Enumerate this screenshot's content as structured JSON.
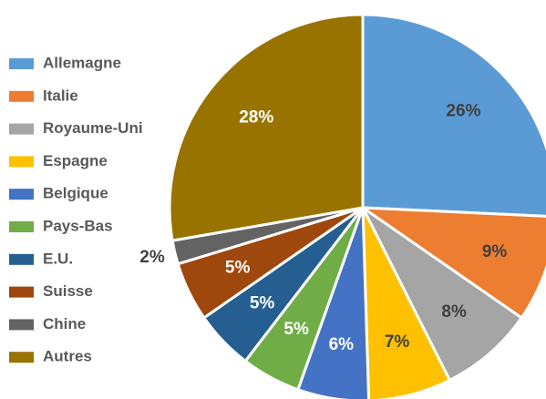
{
  "chart_data": {
    "type": "pie",
    "categories": [
      "Allemagne",
      "Italie",
      "Royaume-Uni",
      "Espagne",
      "Belgique",
      "Pays-Bas",
      "E.U.",
      "Suisse",
      "Chine",
      "Autres"
    ],
    "values": [
      26,
      9,
      8,
      7,
      6,
      5,
      5,
      5,
      2,
      28
    ],
    "value_labels": [
      "26%",
      "9%",
      "8%",
      "7%",
      "6%",
      "5%",
      "5%",
      "5%",
      "2%",
      "28%"
    ],
    "colors": [
      "#5b9bd5",
      "#ed7d31",
      "#a5a5a5",
      "#ffc000",
      "#4472c4",
      "#70ad47",
      "#255e91",
      "#9e480e",
      "#636363",
      "#997300"
    ],
    "label_colors": [
      "#404040",
      "#404040",
      "#404040",
      "#404040",
      "#ffffff",
      "#ffffff",
      "#ffffff",
      "#ffffff",
      "#404040",
      "#ffffff"
    ],
    "legend": "left"
  }
}
